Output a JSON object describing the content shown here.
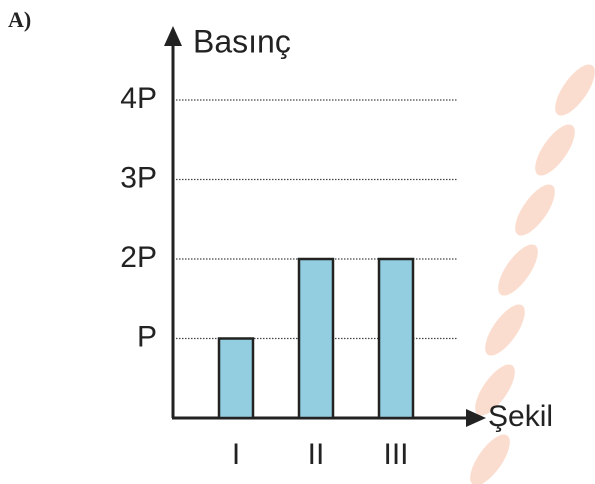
{
  "chart_data": {
    "type": "bar",
    "label": "A)",
    "ylabel": "Basınç",
    "xlabel": "Şekil",
    "categories": [
      "I",
      "II",
      "III"
    ],
    "values": [
      1,
      2,
      2
    ],
    "color": "#93cde0",
    "ylim": [
      0,
      4
    ],
    "yticks": [
      {
        "value": 1,
        "label": "P"
      },
      {
        "value": 2,
        "label": "2P"
      },
      {
        "value": 3,
        "label": "3P"
      },
      {
        "value": 4,
        "label": "4P"
      }
    ],
    "grid": true
  }
}
